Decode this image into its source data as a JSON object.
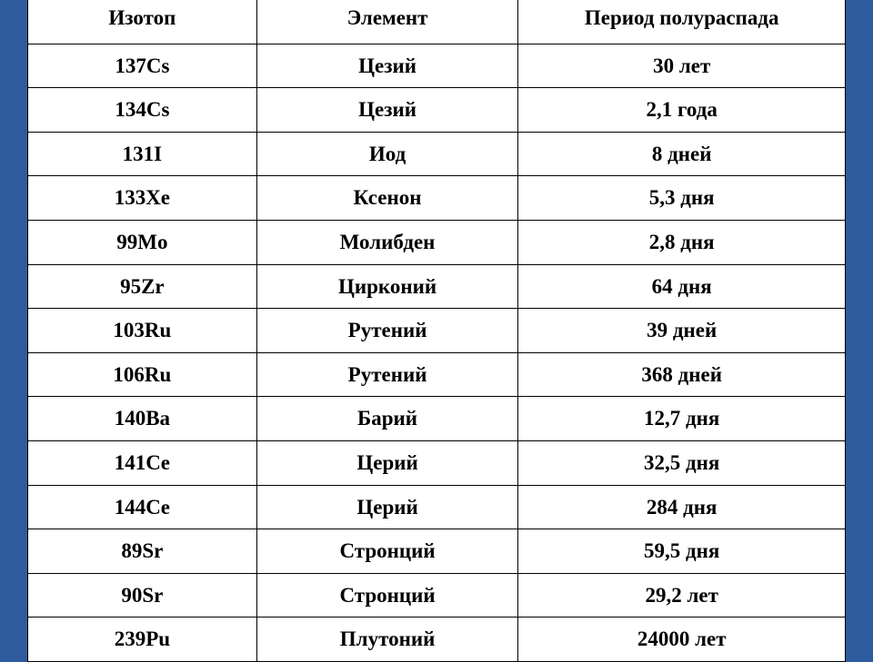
{
  "table": {
    "type": "table",
    "background_color": "#ffffff",
    "page_background": "#2e5a9e",
    "border_color": "#000000",
    "text_color": "#000000",
    "font_family": "Times New Roman",
    "header_fontsize": 23,
    "cell_fontsize": 23,
    "font_weight": "bold",
    "columns": [
      {
        "label": "Изотоп",
        "width_pct": 28,
        "align": "center"
      },
      {
        "label": "Элемент",
        "width_pct": 32,
        "align": "center"
      },
      {
        "label": "Период полураспада",
        "width_pct": 40,
        "align": "center"
      }
    ],
    "rows": [
      [
        "137Cs",
        "Цезий",
        "30 лет"
      ],
      [
        "134Cs",
        "Цезий",
        "2,1 года"
      ],
      [
        "131I",
        "Иод",
        "8 дней"
      ],
      [
        "133Xe",
        "Ксенон",
        "5,3 дня"
      ],
      [
        "99Mo",
        "Молибден",
        "2,8 дня"
      ],
      [
        "95Zr",
        "Цирконий",
        "64 дня"
      ],
      [
        "103Ru",
        "Рутений",
        "39 дней"
      ],
      [
        "106Ru",
        "Рутений",
        "368 дней"
      ],
      [
        "140Ba",
        "Барий",
        "12,7 дня"
      ],
      [
        "141Ce",
        "Церий",
        "32,5 дня"
      ],
      [
        "144Ce",
        "Церий",
        "284 дня"
      ],
      [
        "89Sr",
        "Стронций",
        "59,5 дня"
      ],
      [
        "90Sr",
        "Стронций",
        "29,2 лет"
      ],
      [
        "239Pu",
        "Плутоний",
        "24000 лет"
      ]
    ]
  }
}
